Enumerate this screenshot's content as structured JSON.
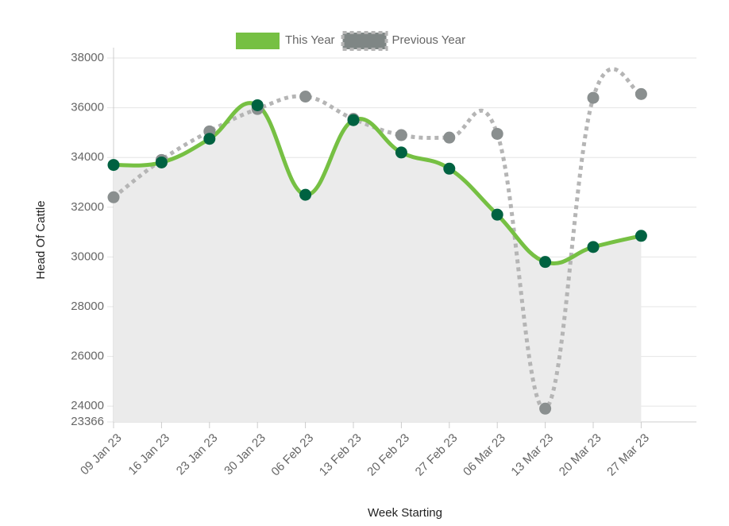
{
  "chart_data": {
    "type": "line",
    "x_label": "Week Starting",
    "y_label": "Head Of Cattle",
    "categories": [
      "09 Jan 23",
      "16 Jan 23",
      "23 Jan 23",
      "30 Jan 23",
      "06 Feb 23",
      "13 Feb 23",
      "20 Feb 23",
      "27 Feb 23",
      "06 Mar 23",
      "13 Mar 23",
      "20 Mar 23",
      "27 Mar 23"
    ],
    "series": [
      {
        "name": "This Year",
        "color": "#76c043",
        "marker_color": "#006241",
        "fill": "#ebebeb",
        "dashed": false,
        "values": [
          33700,
          33800,
          34750,
          36100,
          32500,
          35500,
          34200,
          33550,
          31700,
          29800,
          30400,
          30850
        ]
      },
      {
        "name": "Previous Year",
        "color": "#b5b5b5",
        "marker_color": "#8a8f8f",
        "dashed": true,
        "values": [
          32400,
          33900,
          35050,
          35950,
          36450,
          35550,
          34900,
          34800,
          34950,
          23900,
          36400,
          36550
        ]
      }
    ],
    "ylim": [
      23366,
      38000
    ],
    "yticks": [
      23366,
      24000,
      26000,
      28000,
      30000,
      32000,
      34000,
      36000,
      38000
    ],
    "grid": true,
    "legend": "top"
  }
}
